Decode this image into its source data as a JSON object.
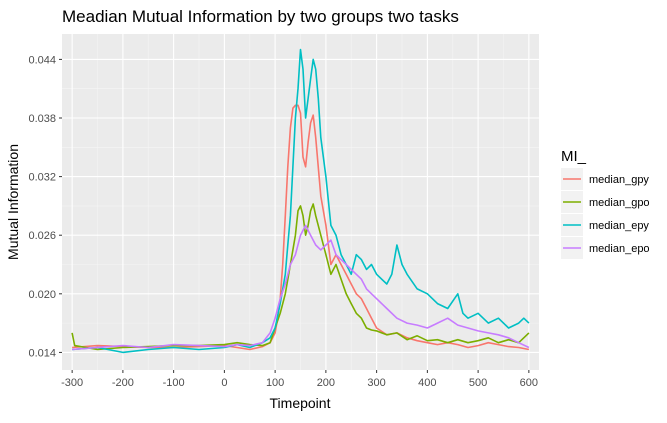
{
  "chart_data": {
    "type": "line",
    "title": "Meadian Mutual Information by two groups two tasks",
    "xlabel": "Timepoint",
    "ylabel": "Mutual Information",
    "xlim": [
      -320,
      620
    ],
    "ylim": [
      0.0122,
      0.0466
    ],
    "x_ticks": [
      -300,
      -200,
      -100,
      0,
      100,
      200,
      300,
      400,
      500,
      600
    ],
    "x_tick_labels": [
      "-300",
      "-200",
      "-100",
      "0",
      "100",
      "200",
      "300",
      "400",
      "500",
      "600"
    ],
    "y_ticks": [
      0.014,
      0.02,
      0.026,
      0.032,
      0.038,
      0.044
    ],
    "y_tick_labels": [
      "0.014",
      "0.020",
      "0.026",
      "0.032",
      "0.038",
      "0.044"
    ],
    "grid": true,
    "legend": {
      "title": "MI_",
      "position": "right"
    },
    "series": [
      {
        "name": "median_gpy",
        "color": "#F8766D",
        "points": [
          [
            -300,
            0.0145
          ],
          [
            -250,
            0.0147
          ],
          [
            -200,
            0.0146
          ],
          [
            -150,
            0.0145
          ],
          [
            -100,
            0.0145
          ],
          [
            -50,
            0.0146
          ],
          [
            0,
            0.0147
          ],
          [
            25,
            0.0145
          ],
          [
            50,
            0.0143
          ],
          [
            75,
            0.0146
          ],
          [
            90,
            0.015
          ],
          [
            100,
            0.016
          ],
          [
            105,
            0.0175
          ],
          [
            110,
            0.0195
          ],
          [
            115,
            0.023
          ],
          [
            120,
            0.028
          ],
          [
            125,
            0.033
          ],
          [
            130,
            0.037
          ],
          [
            135,
            0.039
          ],
          [
            140,
            0.0393
          ],
          [
            145,
            0.0393
          ],
          [
            150,
            0.0385
          ],
          [
            155,
            0.034
          ],
          [
            160,
            0.033
          ],
          [
            165,
            0.0355
          ],
          [
            170,
            0.0375
          ],
          [
            175,
            0.0383
          ],
          [
            180,
            0.036
          ],
          [
            190,
            0.03
          ],
          [
            200,
            0.027
          ],
          [
            210,
            0.023
          ],
          [
            220,
            0.024
          ],
          [
            230,
            0.023
          ],
          [
            240,
            0.022
          ],
          [
            250,
            0.021
          ],
          [
            260,
            0.02
          ],
          [
            270,
            0.0195
          ],
          [
            280,
            0.0185
          ],
          [
            290,
            0.0175
          ],
          [
            300,
            0.0165
          ],
          [
            320,
            0.0158
          ],
          [
            340,
            0.016
          ],
          [
            360,
            0.0155
          ],
          [
            380,
            0.0152
          ],
          [
            400,
            0.015
          ],
          [
            420,
            0.0148
          ],
          [
            440,
            0.015
          ],
          [
            460,
            0.0148
          ],
          [
            480,
            0.0145
          ],
          [
            500,
            0.0147
          ],
          [
            520,
            0.015
          ],
          [
            540,
            0.0148
          ],
          [
            560,
            0.0146
          ],
          [
            580,
            0.0145
          ],
          [
            600,
            0.0143
          ]
        ]
      },
      {
        "name": "median_gpo",
        "color": "#7CAE00",
        "points": [
          [
            -300,
            0.016
          ],
          [
            -295,
            0.0147
          ],
          [
            -250,
            0.0143
          ],
          [
            -200,
            0.0145
          ],
          [
            -150,
            0.0146
          ],
          [
            -100,
            0.0147
          ],
          [
            -50,
            0.0147
          ],
          [
            0,
            0.0148
          ],
          [
            25,
            0.015
          ],
          [
            50,
            0.0148
          ],
          [
            75,
            0.0147
          ],
          [
            90,
            0.015
          ],
          [
            100,
            0.0165
          ],
          [
            110,
            0.018
          ],
          [
            120,
            0.02
          ],
          [
            130,
            0.023
          ],
          [
            140,
            0.026
          ],
          [
            145,
            0.0285
          ],
          [
            150,
            0.029
          ],
          [
            155,
            0.028
          ],
          [
            160,
            0.026
          ],
          [
            165,
            0.027
          ],
          [
            170,
            0.0285
          ],
          [
            175,
            0.0292
          ],
          [
            180,
            0.028
          ],
          [
            190,
            0.026
          ],
          [
            200,
            0.024
          ],
          [
            210,
            0.022
          ],
          [
            220,
            0.023
          ],
          [
            230,
            0.0215
          ],
          [
            240,
            0.02
          ],
          [
            250,
            0.019
          ],
          [
            260,
            0.018
          ],
          [
            270,
            0.0175
          ],
          [
            280,
            0.0165
          ],
          [
            290,
            0.0163
          ],
          [
            300,
            0.0162
          ],
          [
            320,
            0.0158
          ],
          [
            340,
            0.016
          ],
          [
            360,
            0.0153
          ],
          [
            380,
            0.0157
          ],
          [
            400,
            0.0152
          ],
          [
            420,
            0.0153
          ],
          [
            440,
            0.015
          ],
          [
            460,
            0.0153
          ],
          [
            480,
            0.015
          ],
          [
            500,
            0.0152
          ],
          [
            520,
            0.0155
          ],
          [
            540,
            0.015
          ],
          [
            560,
            0.0153
          ],
          [
            580,
            0.015
          ],
          [
            600,
            0.016
          ]
        ]
      },
      {
        "name": "median_epy",
        "color": "#00BFC4",
        "points": [
          [
            -300,
            0.0143
          ],
          [
            -250,
            0.0145
          ],
          [
            -200,
            0.014
          ],
          [
            -150,
            0.0143
          ],
          [
            -100,
            0.0145
          ],
          [
            -50,
            0.0143
          ],
          [
            0,
            0.0145
          ],
          [
            25,
            0.0148
          ],
          [
            50,
            0.0145
          ],
          [
            75,
            0.015
          ],
          [
            90,
            0.0155
          ],
          [
            100,
            0.0165
          ],
          [
            110,
            0.019
          ],
          [
            120,
            0.022
          ],
          [
            125,
            0.025
          ],
          [
            130,
            0.028
          ],
          [
            135,
            0.033
          ],
          [
            140,
            0.038
          ],
          [
            145,
            0.041
          ],
          [
            150,
            0.045
          ],
          [
            155,
            0.043
          ],
          [
            160,
            0.038
          ],
          [
            165,
            0.04
          ],
          [
            170,
            0.042
          ],
          [
            175,
            0.044
          ],
          [
            180,
            0.043
          ],
          [
            185,
            0.04
          ],
          [
            190,
            0.036
          ],
          [
            200,
            0.032
          ],
          [
            210,
            0.027
          ],
          [
            220,
            0.026
          ],
          [
            230,
            0.024
          ],
          [
            240,
            0.023
          ],
          [
            250,
            0.022
          ],
          [
            260,
            0.024
          ],
          [
            270,
            0.0235
          ],
          [
            280,
            0.0225
          ],
          [
            290,
            0.023
          ],
          [
            300,
            0.022
          ],
          [
            310,
            0.0215
          ],
          [
            320,
            0.021
          ],
          [
            330,
            0.022
          ],
          [
            340,
            0.025
          ],
          [
            350,
            0.023
          ],
          [
            360,
            0.022
          ],
          [
            380,
            0.0205
          ],
          [
            400,
            0.02
          ],
          [
            420,
            0.019
          ],
          [
            440,
            0.0185
          ],
          [
            460,
            0.02
          ],
          [
            470,
            0.018
          ],
          [
            480,
            0.0175
          ],
          [
            500,
            0.018
          ],
          [
            520,
            0.017
          ],
          [
            540,
            0.0175
          ],
          [
            560,
            0.0165
          ],
          [
            580,
            0.017
          ],
          [
            590,
            0.0175
          ],
          [
            600,
            0.017
          ]
        ]
      },
      {
        "name": "median_epo",
        "color": "#C77CFF",
        "points": [
          [
            -300,
            0.0143
          ],
          [
            -250,
            0.0145
          ],
          [
            -200,
            0.0147
          ],
          [
            -150,
            0.0145
          ],
          [
            -100,
            0.0148
          ],
          [
            -50,
            0.0147
          ],
          [
            0,
            0.0146
          ],
          [
            25,
            0.0148
          ],
          [
            50,
            0.0147
          ],
          [
            75,
            0.015
          ],
          [
            90,
            0.016
          ],
          [
            100,
            0.0175
          ],
          [
            110,
            0.0195
          ],
          [
            120,
            0.021
          ],
          [
            130,
            0.023
          ],
          [
            140,
            0.024
          ],
          [
            150,
            0.026
          ],
          [
            160,
            0.027
          ],
          [
            170,
            0.026
          ],
          [
            180,
            0.025
          ],
          [
            190,
            0.0245
          ],
          [
            200,
            0.025
          ],
          [
            210,
            0.0255
          ],
          [
            220,
            0.024
          ],
          [
            230,
            0.0235
          ],
          [
            240,
            0.023
          ],
          [
            250,
            0.0225
          ],
          [
            260,
            0.022
          ],
          [
            270,
            0.0215
          ],
          [
            280,
            0.0205
          ],
          [
            290,
            0.02
          ],
          [
            300,
            0.0195
          ],
          [
            320,
            0.0185
          ],
          [
            340,
            0.0175
          ],
          [
            360,
            0.017
          ],
          [
            380,
            0.0168
          ],
          [
            400,
            0.0165
          ],
          [
            420,
            0.017
          ],
          [
            440,
            0.0175
          ],
          [
            460,
            0.0168
          ],
          [
            480,
            0.0165
          ],
          [
            500,
            0.0162
          ],
          [
            520,
            0.016
          ],
          [
            540,
            0.0158
          ],
          [
            560,
            0.0155
          ],
          [
            580,
            0.015
          ],
          [
            600,
            0.0145
          ]
        ]
      }
    ]
  }
}
